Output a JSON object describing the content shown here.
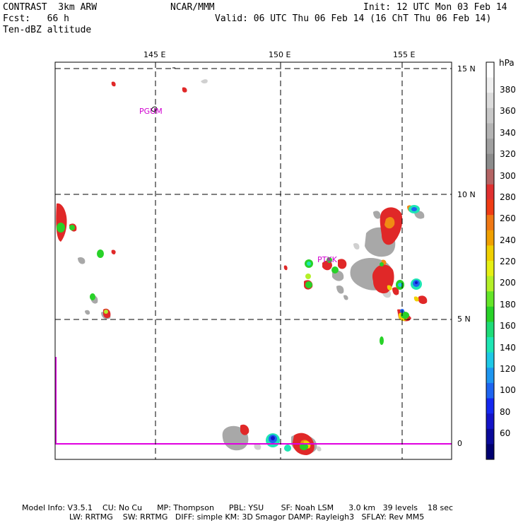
{
  "header": {
    "model": "CONTRAST  3km ARW",
    "forecast": "Fcst:   66 h",
    "field": "Ten-dBZ altitude",
    "center": "NCAR/MMM",
    "init": "Init: 12 UTC Mon 03 Feb 14",
    "valid": "Valid: 06 UTC Thu 06 Feb 14 (16 ChT Thu 06 Feb 14)"
  },
  "axes": {
    "lon_labels": [
      "145 E",
      "150 E",
      "155 E"
    ],
    "lat_labels": [
      "15 N",
      "10 N",
      "5 N",
      "0"
    ]
  },
  "stations": {
    "pgum": "PGUM",
    "ptkk": "PTKK"
  },
  "colorbar": {
    "unit": "hPa",
    "labels": [
      "380",
      "360",
      "340",
      "320",
      "300",
      "280",
      "260",
      "240",
      "220",
      "200",
      "180",
      "160",
      "140",
      "120",
      "100",
      "80",
      "60"
    ],
    "colors": [
      "#ffffff",
      "#f0f0f0",
      "#dcdcdc",
      "#c8c8c8",
      "#b4b4b4",
      "#a0a0a0",
      "#8c8c8c",
      "#b46464",
      "#e03030",
      "#f03c14",
      "#f07814",
      "#f0a000",
      "#f0d000",
      "#e6f014",
      "#b4f028",
      "#64e628",
      "#28d228",
      "#1edc78",
      "#1ee6b4",
      "#1ec8e6",
      "#1e96f0",
      "#1e64f0",
      "#1428f0",
      "#1414c8",
      "#0a0a9a",
      "#000070"
    ]
  },
  "footer": {
    "line1": "Model Info: V3.5.1    CU: No Cu      MP: Thompson      PBL: YSU       SF: Noah LSM      3.0 km   39 levels    18 sec",
    "line2": "LW: RRTMG    SW: RRTMG   DIFF: simple KM: 3D Smagor DAMP: Rayleigh3   SFLAY: Rev MM5"
  }
}
